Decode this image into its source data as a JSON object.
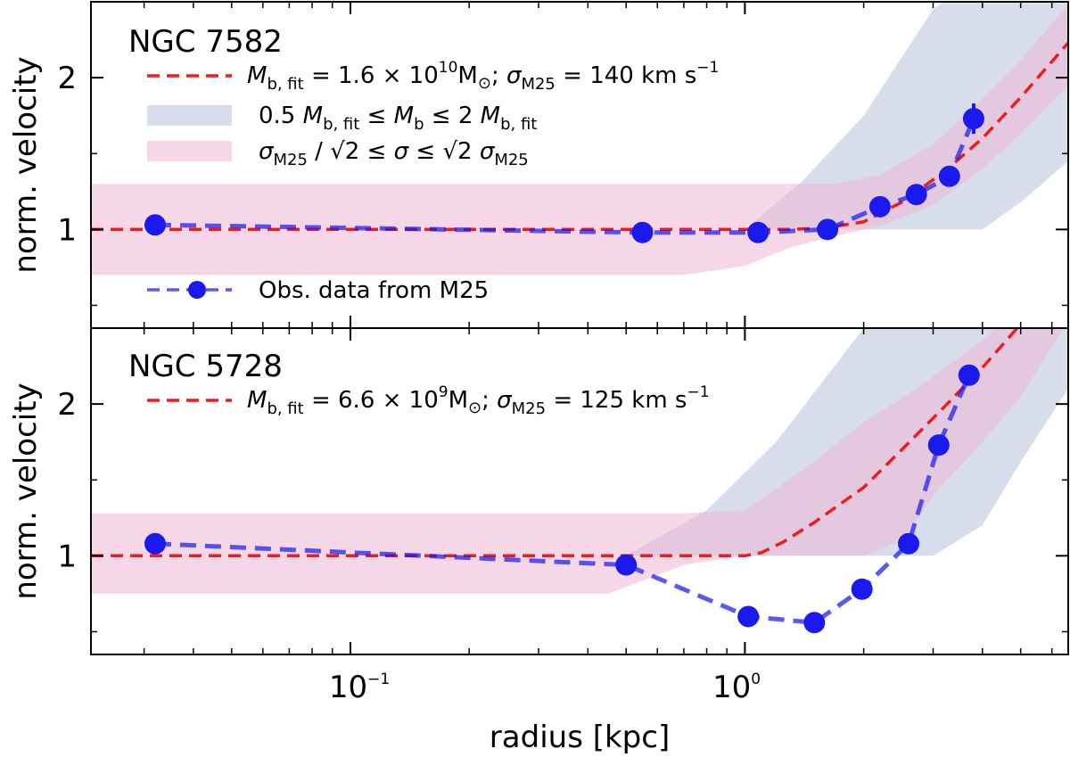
{
  "chart_data": {
    "type": "line",
    "x_scale": "log",
    "xlim": [
      0.022,
      6.6
    ],
    "xlabel": "radius [kpc]",
    "x_tick_labels": [
      {
        "value": 0.1,
        "base": "10",
        "exp": "−1"
      },
      {
        "value": 1,
        "base": "10",
        "exp": "0"
      }
    ],
    "legend_placement": "upper-left",
    "shared_legend": {
      "band_mass": {
        "color": "#b0bcd7",
        "parts": [
          "0.5 ",
          "M",
          "b, fit",
          " ≤ ",
          "M",
          "b",
          " ≤ 2 ",
          "M",
          "b, fit"
        ]
      },
      "band_sigma": {
        "color": "#eeb6d6",
        "parts": [
          "σ",
          "M25",
          " / √2 ≤ ",
          "σ",
          " ≤ √2 ",
          "σ",
          "M25"
        ]
      },
      "observed": {
        "label": "Obs. data from M25",
        "color": "#1a1aee"
      }
    },
    "panels": [
      {
        "title": "NGC 7582",
        "ylabel": "norm. velocity",
        "ylim": [
          0.35,
          2.5
        ],
        "y_ticks": [
          1,
          2
        ],
        "fit_legend": {
          "color": "#ee1c1c",
          "parts": {
            "lhs": "M",
            "lhs_sub": "b, fit",
            "eq1": " = 1.6 × 10",
            "exp": "10",
            "unit": "M",
            "unit_sub": "⊙",
            "sep": ";  ",
            "sig": "σ",
            "sig_sub": "M25",
            "eq2": " = 140 km s",
            "exp2": "−1"
          }
        },
        "fit_curve": {
          "x": [
            0.022,
            1.0,
            1.3,
            1.6,
            2.0,
            2.5,
            3.2,
            4.0,
            5.0,
            6.6
          ],
          "y": [
            1.0,
            1.0,
            1.0,
            1.01,
            1.05,
            1.18,
            1.38,
            1.6,
            1.87,
            2.23
          ]
        },
        "mass_band": {
          "x": [
            0.022,
            1.0,
            1.4,
            2.0,
            3.0,
            4.0,
            5.0,
            6.6
          ],
          "lower": [
            1.0,
            1.0,
            1.0,
            1.0,
            1.0,
            1.0,
            1.18,
            1.45
          ],
          "upper": [
            1.0,
            1.0,
            1.32,
            1.75,
            2.45,
            2.7,
            2.7,
            2.7
          ]
        },
        "sigma_band": {
          "x": [
            0.022,
            0.7,
            1.0,
            1.3,
            1.7,
            2.2,
            3.0,
            4.0,
            5.0,
            6.6
          ],
          "lower": [
            0.7,
            0.7,
            0.76,
            0.88,
            0.96,
            1.02,
            1.16,
            1.4,
            1.63,
            1.95
          ],
          "upper": [
            1.3,
            1.3,
            1.3,
            1.3,
            1.3,
            1.36,
            1.56,
            1.86,
            2.12,
            2.48
          ]
        },
        "observed": {
          "x": [
            0.032,
            0.55,
            1.08,
            1.62,
            2.2,
            2.72,
            3.3,
            3.8
          ],
          "y": [
            1.03,
            0.98,
            0.98,
            1.0,
            1.15,
            1.23,
            1.35,
            1.73
          ],
          "err": [
            0.04,
            0.03,
            0.03,
            0.03,
            0.03,
            0.03,
            0.04,
            0.1
          ]
        }
      },
      {
        "title": "NGC 5728",
        "ylabel": "norm. velocity",
        "ylim": [
          0.35,
          2.5
        ],
        "y_ticks": [
          1,
          2
        ],
        "fit_legend": {
          "color": "#ee1c1c",
          "parts": {
            "lhs": "M",
            "lhs_sub": "b, fit",
            "eq1": " = 6.6 × 10",
            "exp": "9",
            "unit": "M",
            "unit_sub": "⊙",
            "sep": ";  ",
            "sig": "σ",
            "sig_sub": "M25",
            "eq2": " = 125 km s",
            "exp2": "−1"
          }
        },
        "fit_curve": {
          "x": [
            0.022,
            1.0,
            1.1,
            1.25,
            1.5,
            2.0,
            2.5,
            3.2,
            4.0,
            4.9
          ],
          "y": [
            1.0,
            1.0,
            1.02,
            1.09,
            1.22,
            1.45,
            1.7,
            1.98,
            2.24,
            2.5
          ]
        },
        "mass_band": {
          "x": [
            0.022,
            0.5,
            0.8,
            1.2,
            2.0,
            3.0,
            4.0,
            5.0,
            6.6
          ],
          "lower": [
            1.0,
            1.0,
            1.0,
            1.0,
            1.0,
            1.0,
            1.2,
            1.62,
            2.1
          ],
          "upper": [
            1.0,
            1.0,
            1.3,
            1.75,
            2.5,
            2.7,
            2.7,
            2.7,
            2.7
          ]
        },
        "sigma_band": {
          "x": [
            0.022,
            0.45,
            0.7,
            1.0,
            1.5,
            2.0,
            2.5,
            3.0,
            4.0,
            5.0,
            6.6
          ],
          "lower": [
            0.75,
            0.75,
            0.94,
            1.0,
            1.0,
            1.0,
            1.1,
            1.4,
            1.75,
            2.05,
            2.55
          ],
          "upper": [
            1.28,
            1.28,
            1.28,
            1.3,
            1.62,
            1.88,
            2.04,
            2.18,
            2.42,
            2.65,
            2.7
          ]
        },
        "observed": {
          "x": [
            0.032,
            0.5,
            1.02,
            1.5,
            1.98,
            2.6,
            3.1,
            3.7
          ],
          "y": [
            1.08,
            0.94,
            0.6,
            0.56,
            0.78,
            1.08,
            1.73,
            2.19
          ],
          "err": [
            0.04,
            0.03,
            0.03,
            0.03,
            0.03,
            0.03,
            0.04,
            0.06
          ]
        }
      }
    ]
  }
}
